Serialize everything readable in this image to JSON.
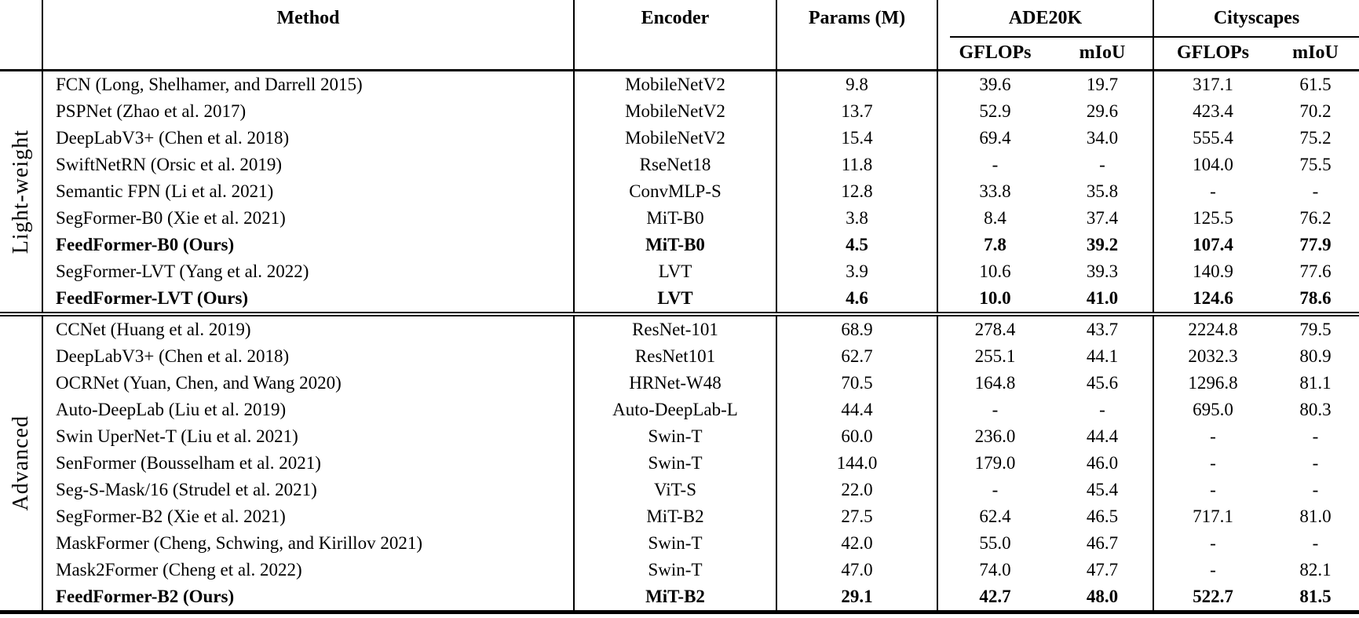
{
  "header": {
    "method": "Method",
    "encoder": "Encoder",
    "params": "Params (M)",
    "groups": [
      {
        "label": "ADE20K"
      },
      {
        "label": "Cityscapes"
      }
    ],
    "subcols": [
      "GFLOPs",
      "mIoU",
      "GFLOPs",
      "mIoU"
    ]
  },
  "sections": [
    {
      "label": "Light-weight",
      "rows": [
        {
          "method": "FCN (Long, Shelhamer, and Darrell 2015)",
          "encoder": "MobileNetV2",
          "params": "9.8",
          "ade_gflops": "39.6",
          "ade_miou": "19.7",
          "city_gflops": "317.1",
          "city_miou": "61.5",
          "bold": false
        },
        {
          "method": "PSPNet (Zhao et al. 2017)",
          "encoder": "MobileNetV2",
          "params": "13.7",
          "ade_gflops": "52.9",
          "ade_miou": "29.6",
          "city_gflops": "423.4",
          "city_miou": "70.2",
          "bold": false
        },
        {
          "method": "DeepLabV3+ (Chen et al. 2018)",
          "encoder": "MobileNetV2",
          "params": "15.4",
          "ade_gflops": "69.4",
          "ade_miou": "34.0",
          "city_gflops": "555.4",
          "city_miou": "75.2",
          "bold": false
        },
        {
          "method": "SwiftNetRN (Orsic et al. 2019)",
          "encoder": "RseNet18",
          "params": "11.8",
          "ade_gflops": "-",
          "ade_miou": "-",
          "city_gflops": "104.0",
          "city_miou": "75.5",
          "bold": false
        },
        {
          "method": "Semantic FPN (Li et al. 2021)",
          "encoder": "ConvMLP-S",
          "params": "12.8",
          "ade_gflops": "33.8",
          "ade_miou": "35.8",
          "city_gflops": "-",
          "city_miou": "-",
          "bold": false
        },
        {
          "method": "SegFormer-B0 (Xie et al. 2021)",
          "encoder": "MiT-B0",
          "params": "3.8",
          "ade_gflops": "8.4",
          "ade_miou": "37.4",
          "city_gflops": "125.5",
          "city_miou": "76.2",
          "bold": false
        },
        {
          "method": "FeedFormer-B0 (Ours)",
          "encoder": "MiT-B0",
          "params": "4.5",
          "ade_gflops": "7.8",
          "ade_miou": "39.2",
          "city_gflops": "107.4",
          "city_miou": "77.9",
          "bold": true
        },
        {
          "method": "SegFormer-LVT (Yang et al. 2022)",
          "encoder": "LVT",
          "params": "3.9",
          "ade_gflops": "10.6",
          "ade_miou": "39.3",
          "city_gflops": "140.9",
          "city_miou": "77.6",
          "bold": false
        },
        {
          "method": "FeedFormer-LVT (Ours)",
          "encoder": "LVT",
          "params": "4.6",
          "ade_gflops": "10.0",
          "ade_miou": "41.0",
          "city_gflops": "124.6",
          "city_miou": "78.6",
          "bold": true
        }
      ]
    },
    {
      "label": "Advanced",
      "rows": [
        {
          "method": "CCNet (Huang et al. 2019)",
          "encoder": "ResNet-101",
          "params": "68.9",
          "ade_gflops": "278.4",
          "ade_miou": "43.7",
          "city_gflops": "2224.8",
          "city_miou": "79.5",
          "bold": false
        },
        {
          "method": "DeepLabV3+ (Chen et al. 2018)",
          "encoder": "ResNet101",
          "params": "62.7",
          "ade_gflops": "255.1",
          "ade_miou": "44.1",
          "city_gflops": "2032.3",
          "city_miou": "80.9",
          "bold": false
        },
        {
          "method": "OCRNet (Yuan, Chen, and Wang 2020)",
          "encoder": "HRNet-W48",
          "params": "70.5",
          "ade_gflops": "164.8",
          "ade_miou": "45.6",
          "city_gflops": "1296.8",
          "city_miou": "81.1",
          "bold": false
        },
        {
          "method": "Auto-DeepLab (Liu et al. 2019)",
          "encoder": "Auto-DeepLab-L",
          "params": "44.4",
          "ade_gflops": "-",
          "ade_miou": "-",
          "city_gflops": "695.0",
          "city_miou": "80.3",
          "bold": false
        },
        {
          "method": "Swin UperNet-T (Liu et al. 2021)",
          "encoder": "Swin-T",
          "params": "60.0",
          "ade_gflops": "236.0",
          "ade_miou": "44.4",
          "city_gflops": "-",
          "city_miou": "-",
          "bold": false
        },
        {
          "method": "SenFormer (Bousselham et al. 2021)",
          "encoder": "Swin-T",
          "params": "144.0",
          "ade_gflops": "179.0",
          "ade_miou": "46.0",
          "city_gflops": "-",
          "city_miou": "-",
          "bold": false
        },
        {
          "method": "Seg-S-Mask/16 (Strudel et al. 2021)",
          "encoder": "ViT-S",
          "params": "22.0",
          "ade_gflops": "-",
          "ade_miou": "45.4",
          "city_gflops": "-",
          "city_miou": "-",
          "bold": false
        },
        {
          "method": "SegFormer-B2 (Xie et al. 2021)",
          "encoder": "MiT-B2",
          "params": "27.5",
          "ade_gflops": "62.4",
          "ade_miou": "46.5",
          "city_gflops": "717.1",
          "city_miou": "81.0",
          "bold": false
        },
        {
          "method": "MaskFormer (Cheng, Schwing, and Kirillov 2021)",
          "encoder": "Swin-T",
          "params": "42.0",
          "ade_gflops": "55.0",
          "ade_miou": "46.7",
          "city_gflops": "-",
          "city_miou": "-",
          "bold": false
        },
        {
          "method": "Mask2Former (Cheng et al. 2022)",
          "encoder": "Swin-T",
          "params": "47.0",
          "ade_gflops": "74.0",
          "ade_miou": "47.7",
          "city_gflops": "-",
          "city_miou": "82.1",
          "bold": false
        },
        {
          "method": "FeedFormer-B2 (Ours)",
          "encoder": "MiT-B2",
          "params": "29.1",
          "ade_gflops": "42.7",
          "ade_miou": "48.0",
          "city_gflops": "522.7",
          "city_miou": "81.5",
          "bold": true
        }
      ]
    }
  ]
}
